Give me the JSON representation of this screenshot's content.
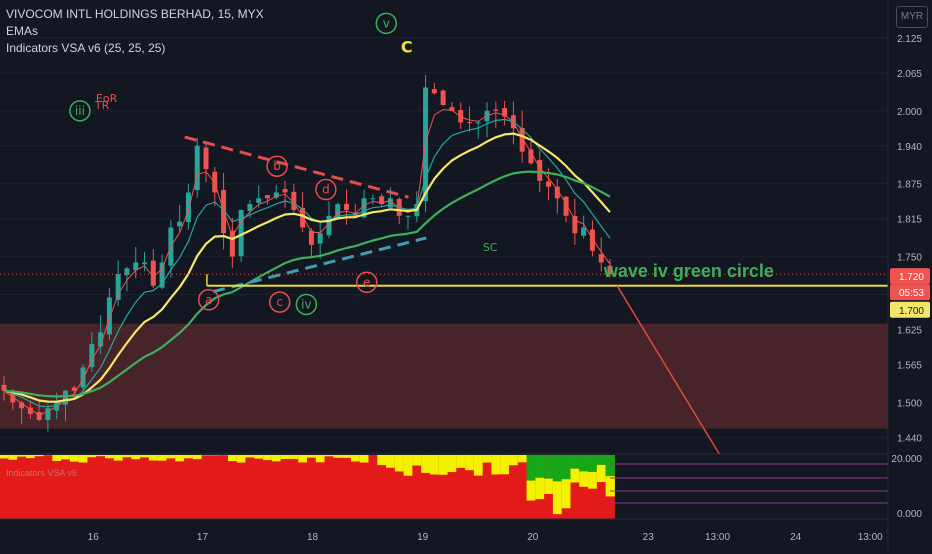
{
  "legend": {
    "symbol_line": "VIVOCOM INTL HOLDINGS BERHAD, 15, MYX",
    "ema_label": "EMAs",
    "vsa_label": "Indicators VSA v6 (25, 25, 25)"
  },
  "currency_label": "MYR",
  "colors": {
    "background": "#131722",
    "candle_up": "#26a69a",
    "candle_down": "#ef5350",
    "ema_fast": "#ef5350",
    "ema_mid": "#26a69a",
    "ema_yellow": "#f5e66a",
    "ema_slow": "#3fae5a",
    "annotation_red": "#e84d4d",
    "annotation_green": "#3fae5a",
    "support_line": "#e6d84a",
    "zone_fill": "#5a2a2e",
    "vsa_red": "#e31a1a",
    "vsa_yellow": "#f3f000",
    "vsa_green": "#16a816"
  },
  "chart_data": {
    "type": "candlestick",
    "title": "VIVOCOM INTL HOLDINGS BERHAD, 15, MYX",
    "y_ticks": [
      "2.125",
      "2.065",
      "2.000",
      "1.940",
      "1.875",
      "1.815",
      "1.750",
      "1.685",
      "1.625",
      "1.565",
      "1.500",
      "1.440"
    ],
    "y_range": [
      1.415,
      2.19
    ],
    "x_ticks": [
      "16",
      "17",
      "18",
      "19",
      "20",
      "23",
      "13:00",
      "24",
      "13:00"
    ],
    "last_price": "1.720",
    "countdown": "05:53",
    "level_label": "1.700",
    "support_level": 1.7,
    "zone": [
      1.455,
      1.635
    ],
    "closes": [
      1.52,
      1.5,
      1.49,
      1.48,
      1.47,
      1.49,
      1.5,
      1.52,
      1.52,
      1.56,
      1.6,
      1.62,
      1.68,
      1.72,
      1.73,
      1.74,
      1.74,
      1.7,
      1.74,
      1.8,
      1.81,
      1.86,
      1.94,
      1.9,
      1.86,
      1.79,
      1.75,
      1.83,
      1.84,
      1.85,
      1.85,
      1.86,
      1.86,
      1.83,
      1.8,
      1.77,
      1.79,
      1.82,
      1.84,
      1.83,
      1.82,
      1.85,
      1.85,
      1.84,
      1.85,
      1.82,
      1.82,
      1.84,
      2.04,
      2.03,
      2.01,
      2.0,
      1.98,
      1.98,
      1.98,
      2.0,
      2.0,
      1.99,
      1.97,
      1.93,
      1.91,
      1.88,
      1.87,
      1.85,
      1.82,
      1.79,
      1.8,
      1.76,
      1.74,
      1.72
    ],
    "annotations": [
      {
        "text": "iii",
        "kind": "circle",
        "color": "green",
        "x": 0.09,
        "price": 2.0
      },
      {
        "text": "EoR",
        "kind": "text",
        "color": "red",
        "x": 0.12,
        "price": 2.015
      },
      {
        "text": "TR",
        "kind": "text",
        "color": "red",
        "x": 0.115,
        "price": 2.003
      },
      {
        "text": "a",
        "kind": "circle",
        "color": "red",
        "x": 0.235,
        "price": 1.676
      },
      {
        "text": "b",
        "kind": "circle",
        "color": "red",
        "x": 0.312,
        "price": 1.905
      },
      {
        "text": "c",
        "kind": "circle",
        "color": "red",
        "x": 0.315,
        "price": 1.672
      },
      {
        "text": "iv",
        "kind": "circle",
        "color": "green",
        "x": 0.345,
        "price": 1.668
      },
      {
        "text": "d",
        "kind": "circle",
        "color": "red",
        "x": 0.367,
        "price": 1.865
      },
      {
        "text": "e",
        "kind": "circle",
        "color": "red",
        "x": 0.413,
        "price": 1.706
      },
      {
        "text": "v",
        "kind": "circle",
        "color": "green",
        "x": 0.435,
        "price": 2.15
      },
      {
        "text": "C",
        "kind": "text",
        "color": "yellow",
        "x": 0.458,
        "price": 2.1
      },
      {
        "text": "SC",
        "kind": "text",
        "color": "green",
        "x": 0.552,
        "price": 1.76
      },
      {
        "text": "wave iv green circle",
        "kind": "label",
        "color": "green",
        "x": 0.68,
        "price": 1.715
      }
    ],
    "vsa_ticks": [
      "20.000",
      "0.000"
    ],
    "vsa_label": "Indicators VSA v6"
  }
}
